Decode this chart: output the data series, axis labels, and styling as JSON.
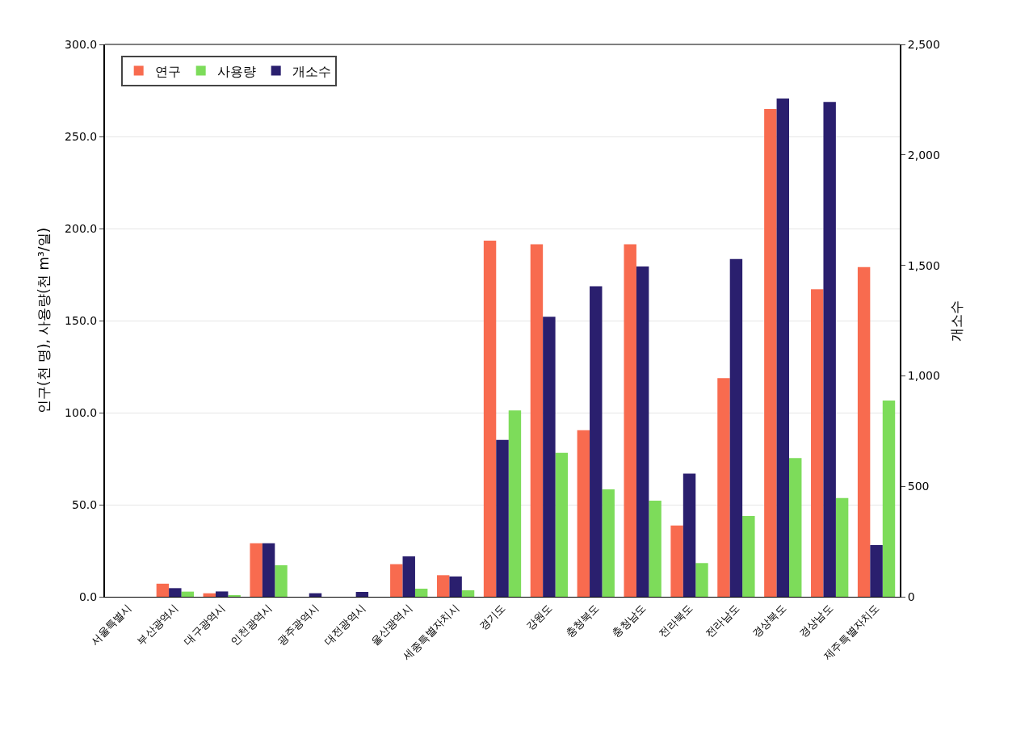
{
  "chart_data": {
    "type": "bar",
    "ylabel": "인구(천 명), 사용량(천 m³/일)",
    "y2label": "개소수",
    "categories": [
      "서울특별시",
      "부산광역시",
      "대구광역시",
      "인천광역시",
      "광주광역시",
      "대전광역시",
      "울산광역시",
      "세종특별자치시",
      "경기도",
      "강원도",
      "충청북도",
      "충청남도",
      "전라북도",
      "전라남도",
      "경상북도",
      "경상남도",
      "제주특별자치도"
    ],
    "series": [
      {
        "name": "연구",
        "color": "#f86b4f",
        "values": [
          0,
          7.1,
          1.9,
          29.1,
          0,
          0,
          17.7,
          11.7,
          193.4,
          191.5,
          90.5,
          191.5,
          38.7,
          118.7,
          264.9,
          167.0,
          179.1
        ]
      },
      {
        "name": "사용량",
        "color": "#7ddc5a",
        "values": [
          0,
          2.8,
          0.5,
          17.1,
          0,
          0,
          4.4,
          3.5,
          101.2,
          78.2,
          58.3,
          52.2,
          18.3,
          43.9,
          75.3,
          53.6,
          106.6
        ]
      },
      {
        "name": "개소수",
        "color": "#2a1f6e",
        "axis": "y2",
        "values": [
          0,
          39,
          24,
          242,
          16,
          22,
          183,
          92,
          710,
          1267,
          1405,
          1495,
          557,
          1529,
          2255,
          2240,
          234
        ]
      }
    ],
    "ylim": [
      0,
      300
    ],
    "yticks": [
      {
        "value": 0,
        "label": "0.0"
      },
      {
        "value": 50,
        "label": "50.0"
      },
      {
        "value": 100,
        "label": "100.0"
      },
      {
        "value": 150,
        "label": "150.0"
      },
      {
        "value": 200,
        "label": "200.0"
      },
      {
        "value": 250,
        "label": "250.0"
      },
      {
        "value": 300,
        "label": "300.0"
      }
    ],
    "y2lim": [
      0,
      2500
    ],
    "y2ticks": [
      0,
      500,
      {
        "value": 1000,
        "label": "1,000"
      },
      {
        "value": 1500,
        "label": "1,500"
      },
      {
        "value": 2000,
        "label": "2,000"
      },
      {
        "value": 2500,
        "label": "2,500"
      }
    ],
    "grid": "y",
    "legend": "top left"
  }
}
